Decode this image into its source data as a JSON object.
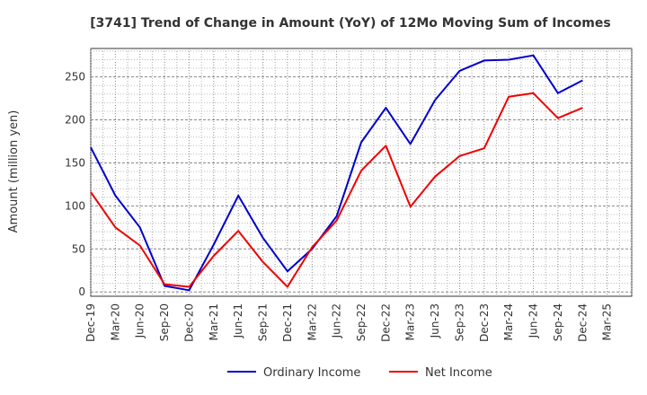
{
  "chart_data": {
    "type": "line",
    "title": "[3741]  Trend of Change in Amount (YoY) of 12Mo Moving Sum of Incomes",
    "ylabel": "Amount (million yen)",
    "xlabel": "",
    "ylim": [
      -5,
      283
    ],
    "yticks": [
      0,
      50,
      100,
      150,
      200,
      250
    ],
    "grid": true,
    "legend_position": "bottom",
    "categories": [
      "Dec-19",
      "Mar-20",
      "Jun-20",
      "Sep-20",
      "Dec-20",
      "Mar-21",
      "Jun-21",
      "Sep-21",
      "Dec-21",
      "Mar-22",
      "Jun-22",
      "Sep-22",
      "Dec-22",
      "Mar-23",
      "Jun-23",
      "Sep-23",
      "Dec-23",
      "Mar-24",
      "Jun-24",
      "Sep-24",
      "Dec-24",
      "Mar-25"
    ],
    "series": [
      {
        "name": "Ordinary Income",
        "color": "#0000cc",
        "values": [
          168,
          112,
          75,
          7,
          2,
          55,
          112,
          63,
          24,
          50,
          88,
          174,
          214,
          172,
          223,
          257,
          269,
          270,
          275,
          231,
          246,
          null
        ]
      },
      {
        "name": "Net Income",
        "color": "#ee0000",
        "values": [
          116,
          75,
          54,
          9,
          6,
          42,
          71,
          35,
          6,
          52,
          83,
          141,
          170,
          99,
          134,
          158,
          167,
          227,
          231,
          202,
          214,
          null
        ]
      }
    ]
  }
}
